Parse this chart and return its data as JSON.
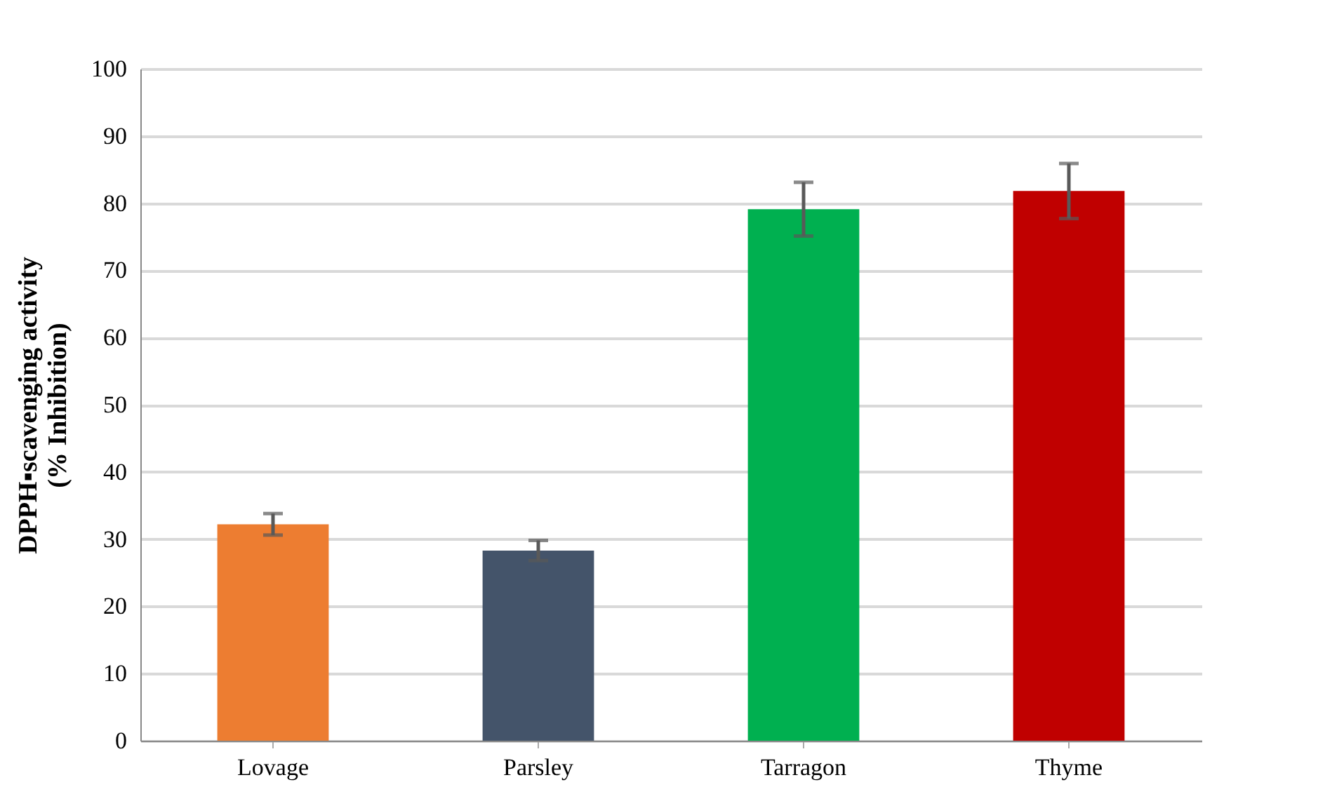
{
  "chart_data": {
    "type": "bar",
    "ylabel": "DPPH▪scavenging activity\n(% Inhibition)",
    "categories": [
      "Lovage",
      "Parsley",
      "Tarragon",
      "Thyme"
    ],
    "values": [
      32.2,
      28.3,
      79.1,
      81.8
    ],
    "colors": [
      "#ed7d31",
      "#44546a",
      "#00b050",
      "#c00000"
    ],
    "errors": [
      1.6,
      1.5,
      4.0,
      4.1
    ],
    "ylim": [
      0,
      100
    ],
    "yticks": [
      0,
      10,
      20,
      30,
      40,
      50,
      60,
      70,
      80,
      90,
      100
    ],
    "grid": "y"
  }
}
